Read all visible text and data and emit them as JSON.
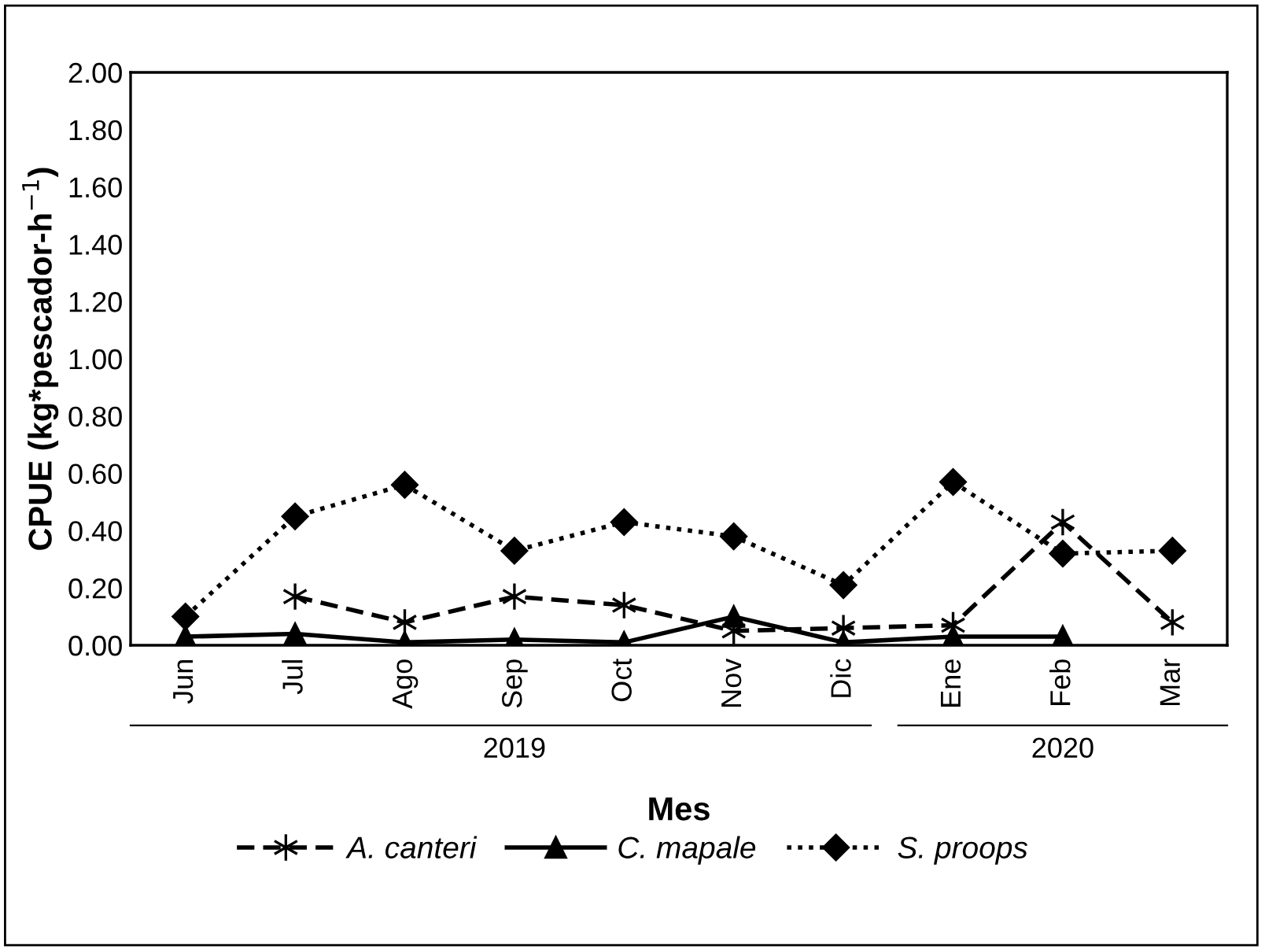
{
  "chart_data": {
    "type": "line",
    "xlabel": "Mes",
    "ylabel": "CPUE (kg*pescador-h$^{−1}$)",
    "categories": [
      "Jun",
      "Jul",
      "Ago",
      "Sep",
      "Oct",
      "Nov",
      "Dic",
      "Ene",
      "Feb",
      "Mar"
    ],
    "series": [
      {
        "name": "A. canteri",
        "color": "#000000",
        "line_style": "dashed",
        "marker": "cross",
        "values": [
          null,
          0.17,
          0.08,
          0.17,
          0.14,
          0.05,
          0.06,
          0.07,
          0.43,
          0.08
        ]
      },
      {
        "name": "C. mapale",
        "color": "#000000",
        "line_style": "solid",
        "marker": "triangle",
        "values": [
          0.03,
          0.04,
          0.01,
          0.02,
          0.01,
          0.1,
          0.01,
          0.03,
          0.03,
          null
        ]
      },
      {
        "name": "S. proops",
        "color": "#000000",
        "line_style": "dotted",
        "marker": "diamond",
        "values": [
          0.1,
          0.45,
          0.56,
          0.33,
          0.43,
          0.38,
          0.21,
          0.57,
          0.32,
          0.33
        ]
      }
    ],
    "annotations": [
      "2019",
      "2020"
    ],
    "ylim": [
      0,
      2
    ],
    "yticks": [
      {
        "value": 0,
        "label": "0.00"
      },
      {
        "value": 0.2,
        "label": "0.20"
      },
      {
        "value": 0.4,
        "label": "0.40"
      },
      {
        "value": 0.6,
        "label": "0.60"
      },
      {
        "value": 0.8,
        "label": "0.80"
      },
      {
        "value": 1.0,
        "label": "1.00"
      },
      {
        "value": 1.2,
        "label": "1.20"
      },
      {
        "value": 1.4,
        "label": "1.40"
      },
      {
        "value": 1.6,
        "label": "1.60"
      },
      {
        "value": 1.8,
        "label": "1.80"
      },
      {
        "value": 2.0,
        "label": "2.00"
      }
    ],
    "grid": false,
    "legend": "bottom"
  }
}
